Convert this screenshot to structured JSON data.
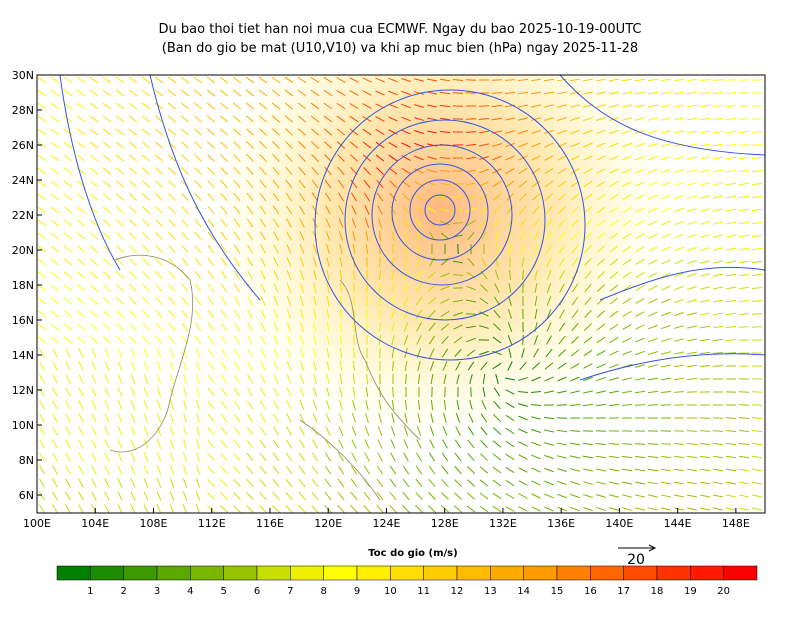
{
  "title": [
    "Du bao thoi tiet han noi mua cua ECMWF. Ngay du bao 2025-10-19-00UTC",
    "(Ban do gio be mat (U10,V10) va khi ap muc bien (hPa) ngay 2025-11-28"
  ],
  "map": {
    "lat_labels": [
      "30N",
      "28N",
      "26N",
      "24N",
      "22N",
      "20N",
      "18N",
      "16N",
      "14N",
      "12N",
      "10N",
      "8N",
      "6N"
    ],
    "lon_labels": [
      "100E",
      "104E",
      "108E",
      "112E",
      "116E",
      "120E",
      "124E",
      "128E",
      "132E",
      "136E",
      "140E",
      "144E",
      "148E"
    ]
  },
  "colorbar": {
    "title": "Toc do gio (m/s)",
    "labels": [
      "1",
      "2",
      "3",
      "4",
      "5",
      "6",
      "7",
      "8",
      "9",
      "10",
      "11",
      "12",
      "13",
      "14",
      "15",
      "16",
      "17",
      "18",
      "19",
      "20"
    ],
    "colors": [
      "#007f00",
      "#1e8c00",
      "#3c9a00",
      "#5aa800",
      "#78b600",
      "#96c400",
      "#c8e000",
      "#eef000",
      "#ffff00",
      "#ffee00",
      "#ffdd00",
      "#ffcc00",
      "#ffbb00",
      "#ffaa00",
      "#ff9900",
      "#ff8000",
      "#ff6600",
      "#ff4c00",
      "#ff3300",
      "#ff1900",
      "#ff0000"
    ]
  },
  "reference_vector": {
    "label": "20"
  }
}
